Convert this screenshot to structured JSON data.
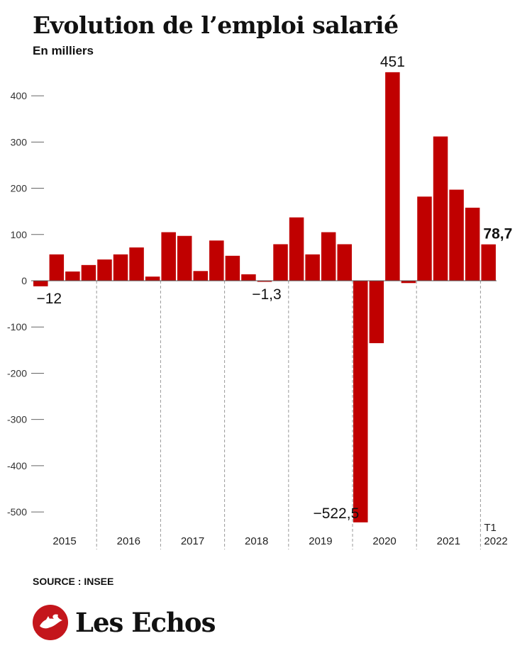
{
  "header": {
    "title": "Evolution de l’emploi salarié",
    "subtitle": "En milliers"
  },
  "footer": {
    "source": "SOURCE : INSEE",
    "logo_text": "Les Echos",
    "logo_icon": "les-echos-mark-icon"
  },
  "colors": {
    "bar": "#c00000",
    "axis": "#666666",
    "text": "#111111",
    "brand": "#c4161c"
  },
  "chart_data": {
    "type": "bar",
    "title": "Evolution de l’emploi salarié",
    "subtitle": "En milliers",
    "xlabel": "",
    "ylabel": "",
    "ylim": [
      -540,
      460
    ],
    "yticks": [
      -500,
      -400,
      -300,
      -200,
      -100,
      0,
      100,
      200,
      300,
      400
    ],
    "ytick_labels": [
      "-500",
      "-400",
      "-300",
      "-200",
      "-100",
      "0",
      "100",
      "200",
      "300",
      "400"
    ],
    "grid": false,
    "year_labels": [
      "2015",
      "2016",
      "2017",
      "2018",
      "2019",
      "2020",
      "2021",
      "T1\n2022"
    ],
    "categories": [
      "2015 T1",
      "2015 T2",
      "2015 T3",
      "2015 T4",
      "2016 T1",
      "2016 T2",
      "2016 T3",
      "2016 T4",
      "2017 T1",
      "2017 T2",
      "2017 T3",
      "2017 T4",
      "2018 T1",
      "2018 T2",
      "2018 T3",
      "2018 T4",
      "2019 T1",
      "2019 T2",
      "2019 T3",
      "2019 T4",
      "2020 T1",
      "2020 T2",
      "2020 T3",
      "2020 T4",
      "2021 T1",
      "2021 T2",
      "2021 T3",
      "2021 T4",
      "2022 T1"
    ],
    "values": [
      -12,
      57,
      20,
      34,
      46,
      57,
      72,
      9,
      105,
      97,
      21,
      87,
      54,
      14,
      -1.3,
      79,
      137,
      57,
      105,
      79,
      -522.5,
      -135,
      451,
      -5,
      182,
      312,
      197,
      158,
      78.7
    ],
    "annotations": [
      {
        "index": 0,
        "label": "−12",
        "bold": false
      },
      {
        "index": 14,
        "label": "−1,3",
        "bold": false
      },
      {
        "index": 20,
        "label": "−522,5",
        "bold": false
      },
      {
        "index": 22,
        "label": "451",
        "bold": false
      },
      {
        "index": 28,
        "label": "78,7",
        "bold": true
      }
    ]
  }
}
